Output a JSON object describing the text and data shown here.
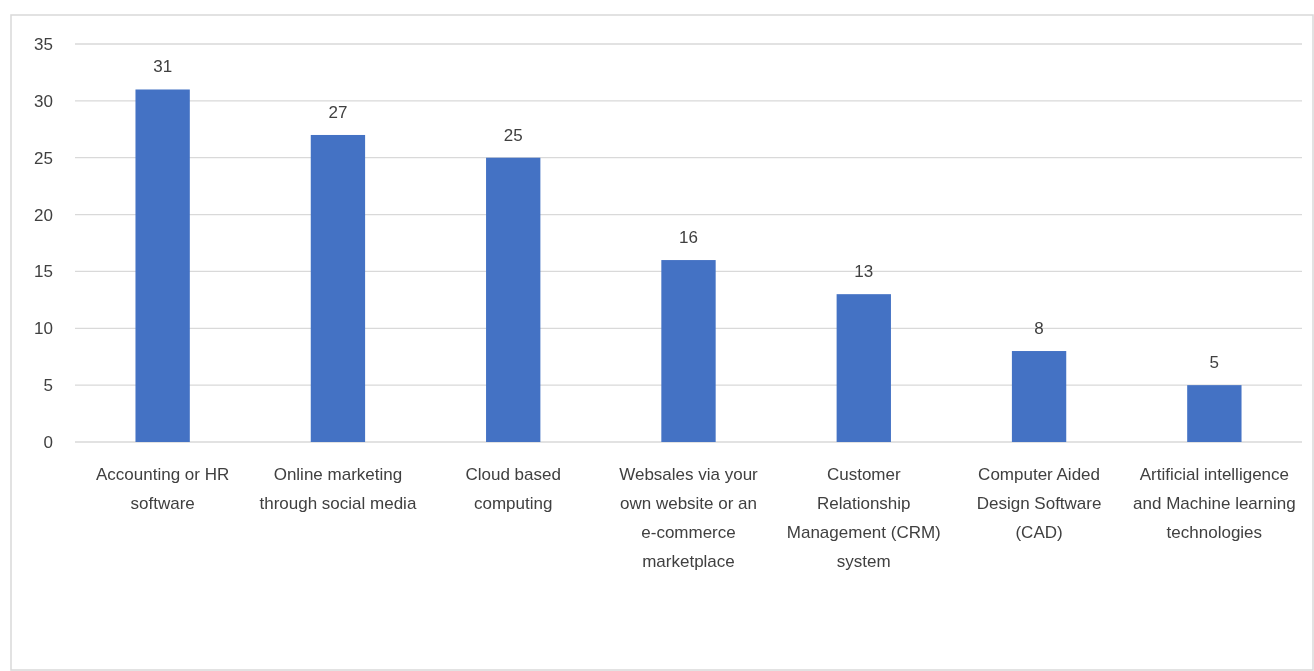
{
  "chart_data": {
    "type": "bar",
    "categories": [
      "Accounting or HR software",
      "Online marketing through social media",
      "Cloud based computing",
      "Websales via your own website or an e-commerce marketplace",
      "Customer Relationship Management (CRM) system",
      "Computer Aided Design Software (CAD)",
      "Artificial intelligence and Machine learning technologies"
    ],
    "values": [
      31,
      27,
      25,
      16,
      13,
      8,
      5
    ],
    "color": "#4472c4",
    "ylim": [
      0,
      35
    ],
    "yticks": [
      0,
      5,
      10,
      15,
      20,
      25,
      30,
      35
    ],
    "grid": "y",
    "data_labels": true
  }
}
